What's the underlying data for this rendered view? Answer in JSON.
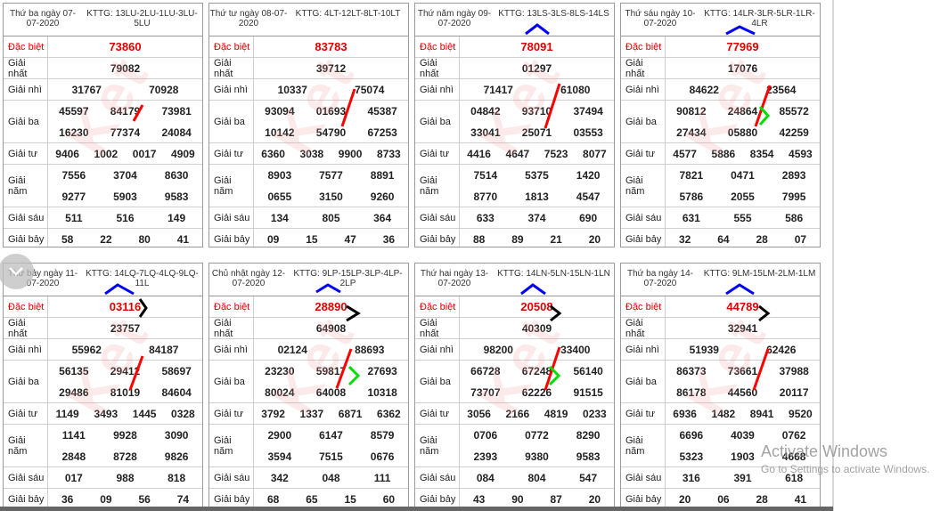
{
  "labels": {
    "db": "Đặc biệt",
    "g1": "Giải nhất",
    "g2": "Giải nhì",
    "g3": "Giải ba",
    "g4": "Giải tư",
    "g5": "Giải năm",
    "g6": "Giải sáu",
    "g7": "Giải bảy"
  },
  "cards": [
    {
      "date": "Thứ ba ngày 07-07-2020",
      "code": "KTTG: 13LU-2LU-1LU-3LU-5LU",
      "db": "73860",
      "g1": "79082",
      "g2": [
        "31767",
        "70928"
      ],
      "g3": [
        "45597",
        "84179",
        "73981",
        "16230",
        "77374",
        "24084"
      ],
      "g4": [
        "9406",
        "1002",
        "0017",
        "4909"
      ],
      "g5": [
        "7556",
        "3704",
        "8630",
        "9277",
        "5903",
        "9583"
      ],
      "g6": [
        "511",
        "516",
        "149"
      ],
      "g7": [
        "58",
        "22",
        "80",
        "41"
      ]
    },
    {
      "date": "Thứ tư ngày 08-07-2020",
      "code": "KTTG: 4LT-12LT-8LT-10LT",
      "db": "83783",
      "g1": "39712",
      "g2": [
        "10337",
        "75074"
      ],
      "g3": [
        "93094",
        "01693",
        "45387",
        "10142",
        "54790",
        "67253"
      ],
      "g4": [
        "6360",
        "3038",
        "9900",
        "8733"
      ],
      "g5": [
        "8903",
        "7577",
        "8891",
        "0655",
        "3150",
        "9260"
      ],
      "g6": [
        "134",
        "805",
        "364"
      ],
      "g7": [
        "09",
        "15",
        "47",
        "36"
      ]
    },
    {
      "date": "Thứ năm ngày 09-07-2020",
      "code": "KTTG: 13LS-3LS-8LS-14LS",
      "db": "78091",
      "g1": "01297",
      "g2": [
        "71417",
        "61080"
      ],
      "g3": [
        "04842",
        "93710",
        "37494",
        "33041",
        "25071",
        "03553"
      ],
      "g4": [
        "4416",
        "4647",
        "7523",
        "8077"
      ],
      "g5": [
        "7514",
        "5375",
        "1420",
        "8770",
        "1813",
        "4547"
      ],
      "g6": [
        "633",
        "374",
        "690"
      ],
      "g7": [
        "88",
        "89",
        "21",
        "20"
      ]
    },
    {
      "date": "Thứ sáu ngày 10-07-2020",
      "code": "KTTG: 14LR-3LR-5LR-1LR-4LR",
      "db": "77969",
      "g1": "17076",
      "g2": [
        "84622",
        "23564"
      ],
      "g3": [
        "90812",
        "24864",
        "85572",
        "27434",
        "05880",
        "42259"
      ],
      "g4": [
        "4577",
        "5886",
        "8354",
        "4593"
      ],
      "g5": [
        "7821",
        "0471",
        "2893",
        "5786",
        "2055",
        "7995"
      ],
      "g6": [
        "631",
        "555",
        "586"
      ],
      "g7": [
        "32",
        "64",
        "28",
        "07"
      ]
    },
    {
      "date": "Thứ bảy ngày 11-07-2020",
      "code": "KTTG: 14LQ-7LQ-4LQ-9LQ-11L",
      "db": "03116",
      "g1": "23757",
      "g2": [
        "55962",
        "84187"
      ],
      "g3": [
        "56135",
        "29412",
        "58697",
        "29486",
        "81019",
        "84604"
      ],
      "g4": [
        "1149",
        "3493",
        "1445",
        "0328"
      ],
      "g5": [
        "1141",
        "9928",
        "3090",
        "2848",
        "8728",
        "9826"
      ],
      "g6": [
        "017",
        "988",
        "818"
      ],
      "g7": [
        "36",
        "09",
        "56",
        "74"
      ]
    },
    {
      "date": "Chủ nhật ngày 12-07-2020",
      "code": "KTTG: 9LP-15LP-3LP-4LP-2LP",
      "db": "28890",
      "g1": "64908",
      "g2": [
        "02124",
        "88693"
      ],
      "g3": [
        "23230",
        "59817",
        "27693",
        "80024",
        "64008",
        "10318"
      ],
      "g4": [
        "3792",
        "1337",
        "6871",
        "6362"
      ],
      "g5": [
        "2900",
        "6147",
        "8579",
        "3594",
        "7515",
        "0676"
      ],
      "g6": [
        "342",
        "048",
        "111"
      ],
      "g7": [
        "68",
        "65",
        "15",
        "60"
      ]
    },
    {
      "date": "Thứ hai ngày 13-07-2020",
      "code": "KTTG: 14LN-5LN-15LN-1LN",
      "db": "20508",
      "g1": "40309",
      "g2": [
        "98200",
        "33400"
      ],
      "g3": [
        "66728",
        "67248",
        "56140",
        "73707",
        "62226",
        "91515"
      ],
      "g4": [
        "3056",
        "2166",
        "4819",
        "0233"
      ],
      "g5": [
        "0706",
        "0772",
        "8290",
        "2393",
        "9380",
        "9583"
      ],
      "g6": [
        "084",
        "804",
        "547"
      ],
      "g7": [
        "43",
        "90",
        "87",
        "20"
      ]
    },
    {
      "date": "Thứ ba ngày 14-07-2020",
      "code": "KTTG: 9LM-15LM-2LM-1LM",
      "db": "44789",
      "g1": "32941",
      "g2": [
        "51939",
        "62426"
      ],
      "g3": [
        "86373",
        "73661",
        "37988",
        "86178",
        "44560",
        "20117"
      ],
      "g4": [
        "6936",
        "1482",
        "8941",
        "9520"
      ],
      "g5": [
        "6696",
        "4039",
        "0762",
        "5323",
        "1903",
        "4668"
      ],
      "g6": [
        "316",
        "391",
        "618"
      ],
      "g7": [
        "20",
        "06",
        "28",
        "41"
      ]
    }
  ],
  "watermark": "Ket",
  "activate": {
    "title": "Activate Windows",
    "subtitle": "Go to Settings to activate Windows."
  },
  "toggle_icon": "chevron-down-icon",
  "colors": {
    "red_text": "#e00000",
    "annotation_red": "#ff0000",
    "annotation_blue": "#0000ff",
    "annotation_green": "#00dd00",
    "annotation_black": "#000000"
  }
}
